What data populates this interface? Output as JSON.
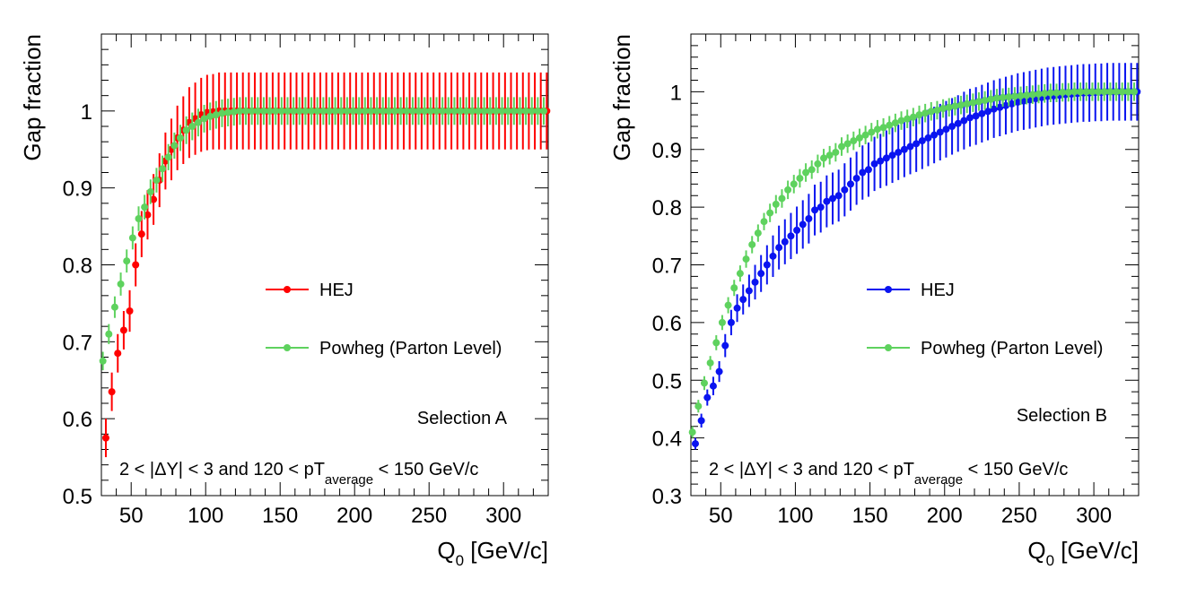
{
  "chart_data": [
    {
      "type": "scatter",
      "panel": "left",
      "ylabel": "Gap fraction",
      "xlabel_main": "Q",
      "xlabel_sub": "0",
      "xlabel_rest": " [GeV/c]",
      "xlim": [
        30,
        330
      ],
      "ylim": [
        0.5,
        1.1
      ],
      "xticks": [
        50,
        100,
        150,
        200,
        250,
        300
      ],
      "yticks": [
        0.5,
        0.6,
        0.7,
        0.8,
        0.9,
        1
      ],
      "xtick_labels": [
        "50",
        "100",
        "150",
        "200",
        "250",
        "300"
      ],
      "ytick_labels": [
        "0.5",
        "0.6",
        "0.7",
        "0.8",
        "0.9",
        "1"
      ],
      "selection_label": "Selection A",
      "cut_label_pre": "2 < |ΔY| < 3 and 120 < pT",
      "cut_label_sub": "average",
      "cut_label_post": " < 150 GeV/c",
      "grid": false,
      "legend_placement": "center",
      "series": [
        {
          "name": "HEJ",
          "color": "#ff0000",
          "x": [
            33,
            37,
            41,
            45,
            49,
            53,
            57,
            61,
            65,
            69,
            73,
            77,
            81,
            85,
            89,
            93,
            97,
            101,
            105,
            109,
            113,
            117,
            121,
            125,
            129,
            133,
            137,
            141,
            145,
            149,
            153,
            157,
            161,
            165,
            169,
            173,
            177,
            181,
            185,
            189,
            193,
            197,
            201,
            205,
            209,
            213,
            217,
            221,
            225,
            229,
            233,
            237,
            241,
            245,
            249,
            253,
            257,
            261,
            265,
            269,
            273,
            277,
            281,
            285,
            289,
            293,
            297,
            301,
            305,
            309,
            313,
            317,
            321,
            325,
            329
          ],
          "y": [
            0.575,
            0.635,
            0.685,
            0.715,
            0.74,
            0.8,
            0.84,
            0.865,
            0.885,
            0.91,
            0.935,
            0.95,
            0.965,
            0.975,
            0.985,
            0.99,
            0.995,
            0.998,
            0.999,
            1,
            1,
            1,
            1,
            1,
            1,
            1,
            1,
            1,
            1,
            1,
            1,
            1,
            1,
            1,
            1,
            1,
            1,
            1,
            1,
            1,
            1,
            1,
            1,
            1,
            1,
            1,
            1,
            1,
            1,
            1,
            1,
            1,
            1,
            1,
            1,
            1,
            1,
            1,
            1,
            1,
            1,
            1,
            1,
            1,
            1,
            1,
            1,
            1,
            1,
            1,
            1,
            1,
            1,
            1,
            1
          ],
          "err": [
            0.025,
            0.025,
            0.025,
            0.025,
            0.027,
            0.028,
            0.03,
            0.032,
            0.033,
            0.035,
            0.037,
            0.04,
            0.042,
            0.044,
            0.046,
            0.047,
            0.048,
            0.049,
            0.049,
            0.05,
            0.05,
            0.05,
            0.05,
            0.05,
            0.05,
            0.05,
            0.05,
            0.05,
            0.05,
            0.05,
            0.05,
            0.05,
            0.05,
            0.05,
            0.05,
            0.05,
            0.05,
            0.05,
            0.05,
            0.05,
            0.05,
            0.05,
            0.05,
            0.05,
            0.05,
            0.05,
            0.05,
            0.05,
            0.05,
            0.05,
            0.05,
            0.05,
            0.05,
            0.05,
            0.05,
            0.05,
            0.05,
            0.05,
            0.05,
            0.05,
            0.05,
            0.05,
            0.05,
            0.05,
            0.05,
            0.05,
            0.05,
            0.05,
            0.05,
            0.05,
            0.05,
            0.05,
            0.05,
            0.05,
            0.05
          ]
        },
        {
          "name": "Powheg (Parton Level)",
          "color": "#5ed25e",
          "x": [
            31,
            35,
            39,
            43,
            47,
            51,
            55,
            59,
            63,
            67,
            71,
            75,
            79,
            83,
            87,
            91,
            95,
            99,
            103,
            107,
            111,
            115,
            119,
            123,
            127,
            131,
            135,
            139,
            143,
            147,
            151,
            155,
            159,
            163,
            167,
            171,
            175,
            179,
            183,
            187,
            191,
            195,
            199,
            203,
            207,
            211,
            215,
            219,
            223,
            227,
            231,
            235,
            239,
            243,
            247,
            251,
            255,
            259,
            263,
            267,
            271,
            275,
            279,
            283,
            287,
            291,
            295,
            299,
            303,
            307,
            311,
            315,
            319,
            323,
            327
          ],
          "y": [
            0.675,
            0.71,
            0.745,
            0.775,
            0.805,
            0.835,
            0.86,
            0.875,
            0.895,
            0.91,
            0.925,
            0.94,
            0.955,
            0.965,
            0.975,
            0.98,
            0.985,
            0.99,
            0.993,
            0.995,
            0.997,
            0.998,
            0.999,
            1,
            1,
            1,
            1,
            1,
            1,
            1,
            1,
            1,
            1,
            1,
            1,
            1,
            1,
            1,
            1,
            1,
            1,
            1,
            1,
            1,
            1,
            1,
            1,
            1,
            1,
            1,
            1,
            1,
            1,
            1,
            1,
            1,
            1,
            1,
            1,
            1,
            1,
            1,
            1,
            1,
            1,
            1,
            1,
            1,
            1,
            1,
            1,
            1,
            1,
            1,
            1
          ],
          "err": [
            0.012,
            0.013,
            0.014,
            0.015,
            0.015,
            0.015,
            0.016,
            0.016,
            0.016,
            0.016,
            0.017,
            0.017,
            0.017,
            0.017,
            0.018,
            0.018,
            0.018,
            0.018,
            0.018,
            0.018,
            0.018,
            0.018,
            0.018,
            0.018,
            0.018,
            0.018,
            0.018,
            0.018,
            0.018,
            0.018,
            0.018,
            0.018,
            0.018,
            0.018,
            0.018,
            0.018,
            0.018,
            0.018,
            0.018,
            0.018,
            0.018,
            0.018,
            0.018,
            0.018,
            0.018,
            0.018,
            0.018,
            0.018,
            0.018,
            0.018,
            0.018,
            0.018,
            0.018,
            0.018,
            0.018,
            0.018,
            0.018,
            0.018,
            0.018,
            0.018,
            0.018,
            0.018,
            0.018,
            0.018,
            0.018,
            0.018,
            0.018,
            0.018,
            0.018,
            0.018,
            0.018,
            0.018,
            0.018,
            0.018,
            0.018
          ]
        }
      ]
    },
    {
      "type": "scatter",
      "panel": "right",
      "ylabel": "Gap fraction",
      "xlabel_main": "Q",
      "xlabel_sub": "0",
      "xlabel_rest": " [GeV/c]",
      "xlim": [
        30,
        330
      ],
      "ylim": [
        0.3,
        1.1
      ],
      "xticks": [
        50,
        100,
        150,
        200,
        250,
        300
      ],
      "yticks": [
        0.3,
        0.4,
        0.5,
        0.6,
        0.7,
        0.8,
        0.9,
        1
      ],
      "xtick_labels": [
        "50",
        "100",
        "150",
        "200",
        "250",
        "300"
      ],
      "ytick_labels": [
        "0.3",
        "0.4",
        "0.5",
        "0.6",
        "0.7",
        "0.8",
        "0.9",
        "1"
      ],
      "selection_label": "Selection B",
      "cut_label_pre": "2 < |ΔY| < 3 and 120 < pT",
      "cut_label_sub": "average",
      "cut_label_post": " < 150 GeV/c",
      "grid": false,
      "legend_placement": "center",
      "series": [
        {
          "name": "HEJ",
          "color": "#0a14f0",
          "x": [
            33,
            37,
            41,
            45,
            49,
            53,
            57,
            61,
            65,
            69,
            73,
            77,
            81,
            85,
            89,
            93,
            97,
            101,
            105,
            109,
            113,
            117,
            121,
            125,
            129,
            133,
            137,
            141,
            145,
            149,
            153,
            157,
            161,
            165,
            169,
            173,
            177,
            181,
            185,
            189,
            193,
            197,
            201,
            205,
            209,
            213,
            217,
            221,
            225,
            229,
            233,
            237,
            241,
            245,
            249,
            253,
            257,
            261,
            265,
            269,
            273,
            277,
            281,
            285,
            289,
            293,
            297,
            301,
            305,
            309,
            313,
            317,
            321,
            325,
            329
          ],
          "y": [
            0.39,
            0.43,
            0.47,
            0.49,
            0.515,
            0.56,
            0.6,
            0.625,
            0.64,
            0.655,
            0.67,
            0.685,
            0.7,
            0.715,
            0.73,
            0.74,
            0.75,
            0.76,
            0.77,
            0.78,
            0.795,
            0.8,
            0.81,
            0.815,
            0.82,
            0.83,
            0.84,
            0.85,
            0.86,
            0.865,
            0.875,
            0.88,
            0.885,
            0.89,
            0.895,
            0.9,
            0.905,
            0.91,
            0.915,
            0.92,
            0.925,
            0.93,
            0.935,
            0.94,
            0.945,
            0.95,
            0.955,
            0.958,
            0.962,
            0.966,
            0.97,
            0.973,
            0.976,
            0.979,
            0.982,
            0.984,
            0.986,
            0.988,
            0.99,
            0.992,
            0.993,
            0.994,
            0.995,
            0.996,
            0.997,
            0.998,
            0.998,
            0.999,
            0.999,
            1,
            1,
            1,
            1,
            1,
            1
          ],
          "err": [
            0.01,
            0.012,
            0.014,
            0.016,
            0.018,
            0.02,
            0.022,
            0.024,
            0.026,
            0.028,
            0.03,
            0.032,
            0.034,
            0.036,
            0.038,
            0.039,
            0.04,
            0.041,
            0.042,
            0.043,
            0.044,
            0.044,
            0.045,
            0.045,
            0.045,
            0.046,
            0.046,
            0.046,
            0.047,
            0.047,
            0.047,
            0.047,
            0.048,
            0.048,
            0.048,
            0.048,
            0.048,
            0.049,
            0.049,
            0.049,
            0.049,
            0.049,
            0.049,
            0.049,
            0.049,
            0.05,
            0.05,
            0.05,
            0.05,
            0.05,
            0.05,
            0.05,
            0.05,
            0.05,
            0.05,
            0.05,
            0.05,
            0.05,
            0.05,
            0.05,
            0.05,
            0.05,
            0.05,
            0.05,
            0.05,
            0.05,
            0.05,
            0.05,
            0.05,
            0.05,
            0.05,
            0.05,
            0.05,
            0.05,
            0.05
          ]
        },
        {
          "name": "Powheg (Parton Level)",
          "color": "#5ed25e",
          "x": [
            31,
            35,
            39,
            43,
            47,
            51,
            55,
            59,
            63,
            67,
            71,
            75,
            79,
            83,
            87,
            91,
            95,
            99,
            103,
            107,
            111,
            115,
            119,
            123,
            127,
            131,
            135,
            139,
            143,
            147,
            151,
            155,
            159,
            163,
            167,
            171,
            175,
            179,
            183,
            187,
            191,
            195,
            199,
            203,
            207,
            211,
            215,
            219,
            223,
            227,
            231,
            235,
            239,
            243,
            247,
            251,
            255,
            259,
            263,
            267,
            271,
            275,
            279,
            283,
            287,
            291,
            295,
            299,
            303,
            307,
            311,
            315,
            319,
            323,
            327
          ],
          "y": [
            0.41,
            0.455,
            0.495,
            0.53,
            0.565,
            0.6,
            0.63,
            0.66,
            0.685,
            0.71,
            0.735,
            0.755,
            0.775,
            0.79,
            0.805,
            0.815,
            0.83,
            0.84,
            0.85,
            0.86,
            0.865,
            0.875,
            0.885,
            0.89,
            0.895,
            0.905,
            0.91,
            0.915,
            0.92,
            0.925,
            0.93,
            0.935,
            0.938,
            0.942,
            0.946,
            0.95,
            0.953,
            0.956,
            0.96,
            0.963,
            0.966,
            0.968,
            0.971,
            0.973,
            0.975,
            0.977,
            0.979,
            0.981,
            0.983,
            0.985,
            0.987,
            0.989,
            0.99,
            0.991,
            0.992,
            0.993,
            0.994,
            0.995,
            0.996,
            0.997,
            0.998,
            0.998,
            0.999,
            0.999,
            1,
            1,
            1,
            1,
            1,
            1,
            1,
            1,
            1,
            1,
            1
          ],
          "err": [
            0.01,
            0.011,
            0.012,
            0.012,
            0.013,
            0.013,
            0.014,
            0.014,
            0.014,
            0.015,
            0.015,
            0.015,
            0.015,
            0.016,
            0.016,
            0.016,
            0.016,
            0.016,
            0.016,
            0.016,
            0.016,
            0.016,
            0.016,
            0.016,
            0.016,
            0.016,
            0.016,
            0.016,
            0.016,
            0.016,
            0.016,
            0.016,
            0.016,
            0.016,
            0.016,
            0.016,
            0.016,
            0.016,
            0.016,
            0.016,
            0.016,
            0.016,
            0.016,
            0.016,
            0.016,
            0.016,
            0.016,
            0.016,
            0.016,
            0.016,
            0.016,
            0.016,
            0.016,
            0.016,
            0.016,
            0.016,
            0.016,
            0.016,
            0.016,
            0.016,
            0.016,
            0.016,
            0.016,
            0.016,
            0.016,
            0.016,
            0.016,
            0.016,
            0.016,
            0.016,
            0.016,
            0.016,
            0.016,
            0.016,
            0.016
          ]
        }
      ]
    }
  ]
}
